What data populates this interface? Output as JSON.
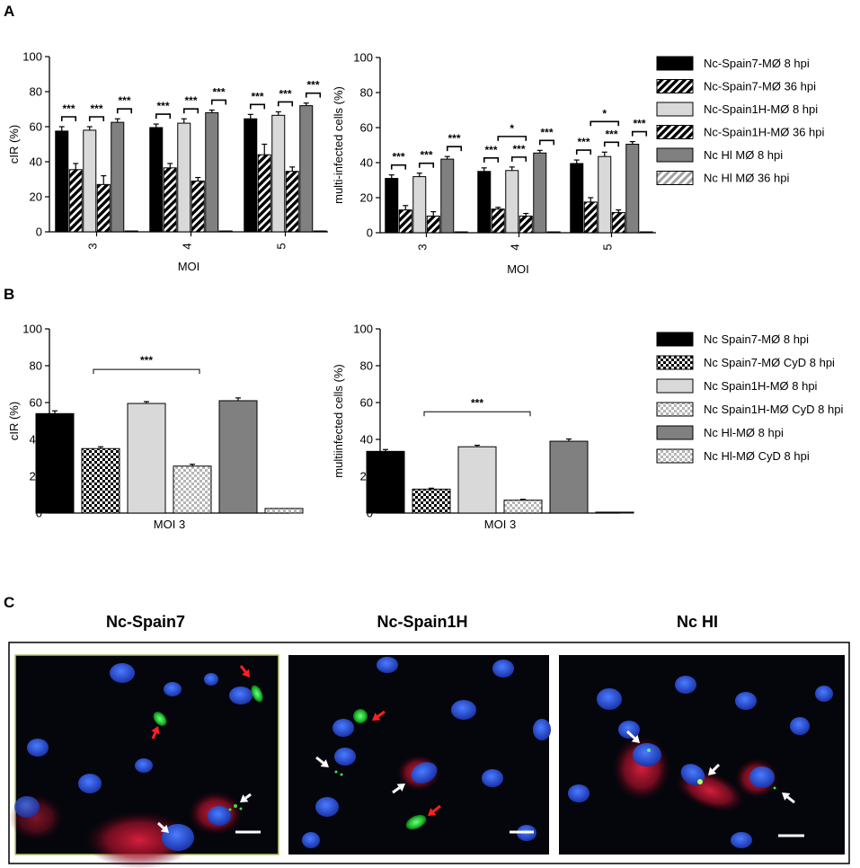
{
  "panel_labels": [
    "A",
    "B",
    "C"
  ],
  "chart_data": [
    {
      "type": "bar",
      "id": "A-left",
      "ylabel": "cIR (%)",
      "xlabel": "MOI",
      "ylim": [
        0,
        100
      ],
      "yticks": [
        "0",
        "20",
        "40",
        "60",
        "80",
        "100"
      ],
      "categories": [
        "3",
        "4",
        "5"
      ],
      "series": [
        {
          "values": [
            57.5,
            59.5,
            64.5
          ],
          "err": [
            2.5,
            2,
            2.5
          ]
        },
        {
          "values": [
            35.5,
            36.5,
            44
          ],
          "err": [
            3.5,
            2.5,
            6
          ]
        },
        {
          "values": [
            58,
            62,
            66.5
          ],
          "err": [
            2,
            2.5,
            2
          ]
        },
        {
          "values": [
            27,
            29,
            34.5
          ],
          "err": [
            5,
            2,
            2.5
          ]
        },
        {
          "values": [
            62.5,
            68,
            72
          ],
          "err": [
            2,
            1.5,
            1.5
          ]
        },
        {
          "values": [
            0.5,
            0.5,
            0.5
          ],
          "err": [
            0,
            0,
            0
          ]
        }
      ],
      "annotations": [
        {
          "text": "***",
          "pairs": [
            [
              0,
              1
            ],
            [
              2,
              3
            ],
            [
              4,
              5
            ]
          ],
          "category": 0
        },
        {
          "text": "***",
          "pairs": [
            [
              0,
              1
            ],
            [
              2,
              3
            ],
            [
              4,
              5
            ]
          ],
          "category": 1
        },
        {
          "text": "***",
          "pairs": [
            [
              0,
              1
            ],
            [
              2,
              3
            ],
            [
              4,
              5
            ]
          ],
          "category": 2
        }
      ]
    },
    {
      "type": "bar",
      "id": "A-right",
      "ylabel": "multi-infected cells (%)",
      "xlabel": "MOI",
      "ylim": [
        0,
        100
      ],
      "yticks": [
        "0",
        "20",
        "40",
        "60",
        "80",
        "100"
      ],
      "categories": [
        "3",
        "4",
        "5"
      ],
      "series": [
        {
          "values": [
            31,
            35,
            39.5
          ],
          "err": [
            2,
            2,
            2
          ]
        },
        {
          "values": [
            13,
            13.5,
            17.5
          ],
          "err": [
            2.5,
            1,
            2.5
          ]
        },
        {
          "values": [
            32,
            35.5,
            43.5
          ],
          "err": [
            2,
            2,
            2.5
          ]
        },
        {
          "values": [
            9.5,
            9.5,
            11.5
          ],
          "err": [
            2.5,
            1.5,
            1.5
          ]
        },
        {
          "values": [
            42,
            45.5,
            50.5
          ],
          "err": [
            1.5,
            1.5,
            1.5
          ]
        },
        {
          "values": [
            0.5,
            0.5,
            0.5
          ],
          "err": [
            0,
            0,
            0
          ]
        }
      ],
      "annotations": [
        {
          "text": "***",
          "pairs": [
            [
              0,
              1
            ],
            [
              2,
              3
            ],
            [
              4,
              5
            ]
          ],
          "category": 0
        },
        {
          "text": "***",
          "pairs": [
            [
              0,
              1
            ],
            [
              2,
              3
            ],
            [
              4,
              5
            ]
          ],
          "category": 1,
          "extra": {
            "text": "*",
            "pair": [
              1,
              3
            ]
          }
        },
        {
          "text": "***",
          "pairs": [
            [
              0,
              1
            ],
            [
              2,
              3
            ],
            [
              4,
              5
            ]
          ],
          "category": 2,
          "extra": {
            "text": "*",
            "pair": [
              1,
              3
            ]
          }
        }
      ]
    },
    {
      "type": "bar",
      "id": "B-left",
      "ylabel": "cIR (%)",
      "xlabel": "MOI 3",
      "ylim": [
        0,
        100
      ],
      "yticks": [
        "0",
        "20",
        "40",
        "60",
        "80",
        "100"
      ],
      "categories": [
        "MOI 3"
      ],
      "series": [
        {
          "values": [
            54
          ],
          "err": [
            1.5
          ]
        },
        {
          "values": [
            35
          ],
          "err": [
            1
          ]
        },
        {
          "values": [
            59.5
          ],
          "err": [
            1
          ]
        },
        {
          "values": [
            25.5
          ],
          "err": [
            1
          ]
        },
        {
          "values": [
            61
          ],
          "err": [
            1.5
          ]
        },
        {
          "values": [
            2.5
          ],
          "err": [
            0
          ]
        }
      ],
      "annotations": [
        {
          "text": "***",
          "pair": [
            1,
            3
          ],
          "y": 78
        }
      ]
    },
    {
      "type": "bar",
      "id": "B-right",
      "ylabel": "multiinfected cells (%)",
      "xlabel": "MOI 3",
      "ylim": [
        0,
        100
      ],
      "yticks": [
        "0",
        "20",
        "40",
        "60",
        "80",
        "100"
      ],
      "categories": [
        "MOI 3"
      ],
      "series": [
        {
          "values": [
            33.5
          ],
          "err": [
            1
          ]
        },
        {
          "values": [
            13
          ],
          "err": [
            0.5
          ]
        },
        {
          "values": [
            36
          ],
          "err": [
            0.8
          ]
        },
        {
          "values": [
            7
          ],
          "err": [
            0.5
          ]
        },
        {
          "values": [
            39
          ],
          "err": [
            1.2
          ]
        },
        {
          "values": [
            0.5
          ],
          "err": [
            0
          ]
        }
      ],
      "annotations": [
        {
          "text": "***",
          "pair": [
            1,
            3
          ],
          "y": 55
        }
      ]
    }
  ],
  "legend_A": [
    "Nc-Spain7-MØ 8 hpi",
    "Nc-Spain7-MØ 36 hpi",
    "Nc-Spain1H-MØ 8 hpi",
    "Nc-Spain1H-MØ 36 hpi",
    "Nc Hl MØ 8 hpi",
    "Nc Hl MØ 36 hpi"
  ],
  "legend_B": [
    "Nc Spain7-MØ 8 hpi",
    "Nc Spain7-MØ CyD 8 hpi",
    "Nc Spain1H-MØ 8 hpi",
    "Nc Spain1H-MØ CyD 8 hpi",
    "Nc Hl-MØ 8 hpi",
    "Nc Hl-MØ CyD 8 hpi"
  ],
  "micrographs": [
    {
      "title": "Nc-Spain7"
    },
    {
      "title": "Nc-Spain1H"
    },
    {
      "title": "Nc HI"
    }
  ],
  "colors": {
    "black": "#000000",
    "light_gray": "#d9d9d9",
    "dark_gray": "#808080",
    "arrow_red": "#ff2020",
    "arrow_white": "#ffffff",
    "nucleus_blue": "#2a4fd8",
    "parasite_green": "#30d040",
    "cyto_red": "#c01030"
  }
}
